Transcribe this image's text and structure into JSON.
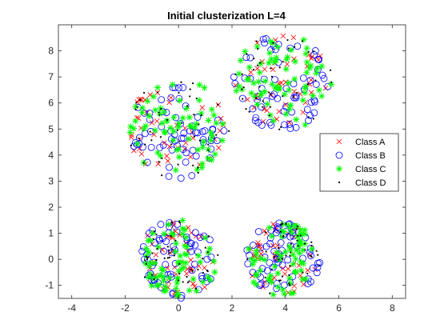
{
  "chart_data": {
    "type": "scatter",
    "title": "Initial clusterization L=4",
    "xlabel": "",
    "ylabel": "",
    "xlim": [
      -4.5,
      8.5
    ],
    "ylim": [
      -1.5,
      9.0
    ],
    "xticks": [
      -4,
      -2,
      0,
      2,
      4,
      6,
      8
    ],
    "yticks": [
      -1,
      0,
      1,
      2,
      3,
      4,
      5,
      6,
      7,
      8
    ],
    "grid": false,
    "legend_placement": "right",
    "clusters": [
      {
        "center": [
          0.0,
          5.0
        ],
        "radius": 1.9
      },
      {
        "center": [
          3.9,
          6.8
        ],
        "radius": 1.85
      },
      {
        "center": [
          0.0,
          0.0
        ],
        "radius": 1.5
      },
      {
        "center": [
          3.9,
          0.0
        ],
        "radius": 1.4
      }
    ],
    "series": [
      {
        "name": "Class A",
        "marker": "x",
        "color": "#ff0000",
        "points_per_cluster": 45
      },
      {
        "name": "Class B",
        "marker": "o",
        "color": "#0000ff",
        "points_per_cluster": 65
      },
      {
        "name": "Class C",
        "marker": "*",
        "color": "#00ff00",
        "points_per_cluster": 70
      },
      {
        "name": "Class D",
        "marker": ".",
        "color": "#000000",
        "points_per_cluster": 45
      }
    ]
  }
}
